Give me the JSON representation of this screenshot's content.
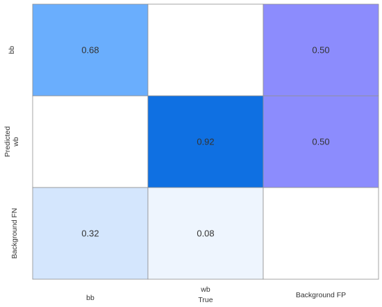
{
  "chart_data": {
    "type": "heatmap",
    "title": "",
    "xlabel": "True",
    "ylabel": "Predicted",
    "x_categories": [
      "bb",
      "wb",
      "Background FP"
    ],
    "y_categories": [
      "bb",
      "wb",
      "Background FN"
    ],
    "cells": [
      [
        0.68,
        null,
        0.5
      ],
      [
        null,
        0.92,
        0.5
      ],
      [
        0.32,
        0.08,
        null
      ]
    ],
    "cell_labels": [
      [
        "0.68",
        "",
        "0.50"
      ],
      [
        "",
        "0.92",
        "0.50"
      ],
      [
        "0.32",
        "0.08",
        ""
      ]
    ],
    "cell_colors": [
      [
        "#6aaefd",
        "#ffffff",
        "#8c8cfd"
      ],
      [
        "#ffffff",
        "#0f70e2",
        "#8c8cfd"
      ],
      [
        "#d4e6fd",
        "#eef5fe",
        "#ffffff"
      ]
    ],
    "grid": false,
    "legend": "none"
  }
}
